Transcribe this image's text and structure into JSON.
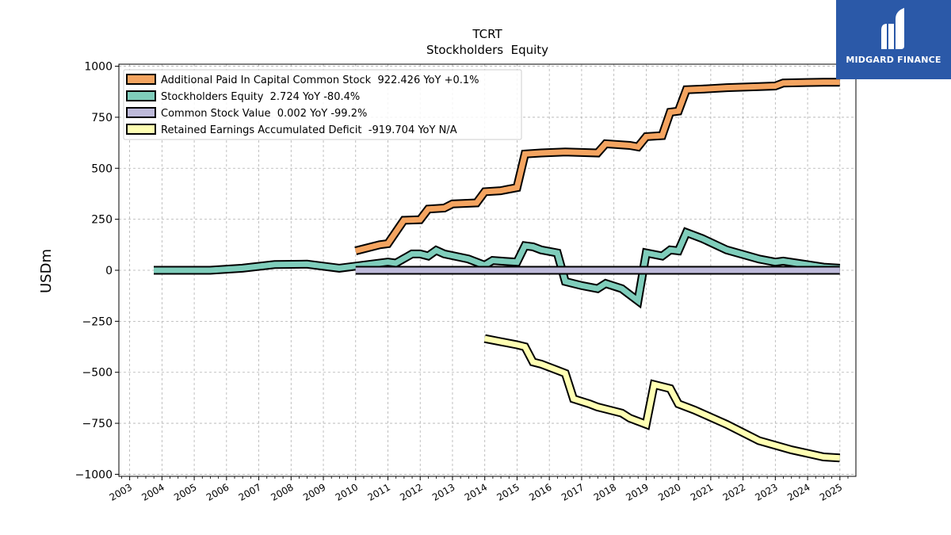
{
  "chart_data": {
    "type": "line",
    "title": "TCRT",
    "subtitle": "Stockholders  Equity",
    "ylabel": "USDm",
    "xlabel": "",
    "xlim": [
      "2002-09-01",
      "2025-07-01"
    ],
    "ylim": [
      -1010,
      1010
    ],
    "yticks": [
      1000,
      750,
      500,
      250,
      0,
      -250,
      -500,
      -750,
      -1000
    ],
    "ytick_labels": [
      "1000",
      "750",
      "500",
      "250",
      "0",
      "−250",
      "−500",
      "−750",
      "−1000"
    ],
    "xtick_labels": [
      "2003",
      "2004",
      "2005",
      "2006",
      "2007",
      "2008",
      "2009",
      "2010",
      "2011",
      "2012",
      "2013",
      "2014",
      "2015",
      "2016",
      "2017",
      "2018",
      "2019",
      "2020",
      "2021",
      "2022",
      "2023",
      "2024",
      "2025"
    ],
    "grid": true,
    "legend_position": "top-left",
    "series": [
      {
        "name": "Additional Paid In Capital Common Stock  922.426 YoY +0.1%",
        "color": "#f4a460",
        "points": [
          [
            "2009-12-31",
            95
          ],
          [
            "2010-09-30",
            125
          ],
          [
            "2010-12-31",
            130
          ],
          [
            "2011-06-30",
            245
          ],
          [
            "2011-12-31",
            248
          ],
          [
            "2012-03-31",
            300
          ],
          [
            "2012-09-30",
            305
          ],
          [
            "2012-12-31",
            325
          ],
          [
            "2013-09-30",
            330
          ],
          [
            "2014-01-01",
            385
          ],
          [
            "2014-06-30",
            390
          ],
          [
            "2014-12-31",
            405
          ],
          [
            "2015-03-31",
            570
          ],
          [
            "2015-09-30",
            575
          ],
          [
            "2016-06-30",
            580
          ],
          [
            "2017-06-30",
            575
          ],
          [
            "2017-09-30",
            620
          ],
          [
            "2018-06-30",
            612
          ],
          [
            "2018-09-30",
            605
          ],
          [
            "2019-01-01",
            655
          ],
          [
            "2019-06-30",
            660
          ],
          [
            "2019-09-30",
            775
          ],
          [
            "2019-12-31",
            780
          ],
          [
            "2020-03-31",
            885
          ],
          [
            "2020-09-30",
            888
          ],
          [
            "2021-06-30",
            895
          ],
          [
            "2022-06-30",
            900
          ],
          [
            "2022-12-31",
            903
          ],
          [
            "2023-03-31",
            918
          ],
          [
            "2024-06-30",
            922
          ],
          [
            "2024-12-31",
            922
          ]
        ]
      },
      {
        "name": "Stockholders Equity  2.724 YoY -80.4%",
        "color": "#7fcdbb",
        "points": [
          [
            "2003-09-30",
            0
          ],
          [
            "2005-06-30",
            0
          ],
          [
            "2006-06-30",
            10
          ],
          [
            "2007-06-30",
            28
          ],
          [
            "2008-06-30",
            30
          ],
          [
            "2009-06-30",
            10
          ],
          [
            "2010-12-31",
            40
          ],
          [
            "2011-03-31",
            35
          ],
          [
            "2011-09-30",
            80
          ],
          [
            "2011-12-31",
            80
          ],
          [
            "2012-03-31",
            70
          ],
          [
            "2012-06-30",
            98
          ],
          [
            "2012-09-30",
            80
          ],
          [
            "2013-06-30",
            55
          ],
          [
            "2013-12-31",
            25
          ],
          [
            "2014-03-31",
            48
          ],
          [
            "2014-06-30",
            45
          ],
          [
            "2014-12-31",
            40
          ],
          [
            "2015-03-31",
            120
          ],
          [
            "2015-06-30",
            115
          ],
          [
            "2015-09-30",
            100
          ],
          [
            "2016-03-31",
            85
          ],
          [
            "2016-06-30",
            -55
          ],
          [
            "2016-12-31",
            -75
          ],
          [
            "2017-06-30",
            -90
          ],
          [
            "2017-09-30",
            -65
          ],
          [
            "2018-03-31",
            -90
          ],
          [
            "2018-06-30",
            -120
          ],
          [
            "2018-09-30",
            -150
          ],
          [
            "2019-01-01",
            85
          ],
          [
            "2019-06-30",
            70
          ],
          [
            "2019-09-30",
            100
          ],
          [
            "2019-12-31",
            95
          ],
          [
            "2020-03-31",
            185
          ],
          [
            "2020-09-30",
            155
          ],
          [
            "2021-06-30",
            100
          ],
          [
            "2022-06-30",
            55
          ],
          [
            "2022-12-31",
            40
          ],
          [
            "2023-03-31",
            45
          ],
          [
            "2024-06-30",
            15
          ],
          [
            "2024-12-31",
            10
          ]
        ]
      },
      {
        "name": "Common Stock Value  0.002 YoY -99.2%",
        "color": "#bebada",
        "points": [
          [
            "2009-12-31",
            0
          ],
          [
            "2024-12-31",
            0
          ]
        ]
      },
      {
        "name": "Retained Earnings Accumulated Deficit  -919.704 YoY N/A",
        "color": "#ffffb3",
        "points": [
          [
            "2014-01-01",
            -335
          ],
          [
            "2014-06-30",
            -350
          ],
          [
            "2014-12-31",
            -365
          ],
          [
            "2015-03-31",
            -375
          ],
          [
            "2015-06-30",
            -450
          ],
          [
            "2015-09-30",
            -460
          ],
          [
            "2016-03-31",
            -490
          ],
          [
            "2016-06-30",
            -505
          ],
          [
            "2016-09-30",
            -630
          ],
          [
            "2017-03-31",
            -655
          ],
          [
            "2017-06-30",
            -670
          ],
          [
            "2018-03-31",
            -700
          ],
          [
            "2018-06-30",
            -725
          ],
          [
            "2018-09-30",
            -740
          ],
          [
            "2018-12-31",
            -755
          ],
          [
            "2019-03-31",
            -560
          ],
          [
            "2019-09-30",
            -580
          ],
          [
            "2019-12-31",
            -655
          ],
          [
            "2020-06-30",
            -685
          ],
          [
            "2021-06-30",
            -755
          ],
          [
            "2022-06-30",
            -835
          ],
          [
            "2023-06-30",
            -880
          ],
          [
            "2024-06-30",
            -915
          ],
          [
            "2024-12-31",
            -920
          ]
        ]
      }
    ]
  },
  "logo": {
    "text": "MIDGARD FINANCE",
    "background": "#2b59a8",
    "foreground": "#ffffff"
  }
}
